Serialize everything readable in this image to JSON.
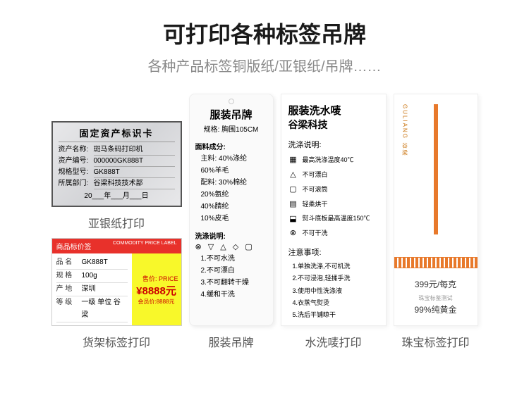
{
  "header": {
    "title": "可打印各种标签吊牌",
    "subtitle": "各种产品标签铜版纸/亚银纸/吊牌……"
  },
  "asset": {
    "card_title": "固定资产标识卡",
    "rows": [
      {
        "k": "资产名称:",
        "v": "斑马条码打印机"
      },
      {
        "k": "资产编号:",
        "v": "000000GK888T"
      },
      {
        "k": "规格型号:",
        "v": "GK888T"
      },
      {
        "k": "所属部门:",
        "v": "谷梁科技技术部"
      }
    ],
    "date": "20___年___月___日",
    "caption": "亚银纸打印"
  },
  "price": {
    "head_l": "商品标价签",
    "head_r": "COMMODITY PRICE LABEL",
    "rows": [
      {
        "k": "品 名",
        "v": "GK888T"
      },
      {
        "k": "规 格",
        "v": "100g"
      },
      {
        "k": "产 地",
        "v": "深圳"
      },
      {
        "k": "等 级",
        "v": "一级 单位 谷梁"
      }
    ],
    "sp": "售价: PRICE",
    "price_val": "¥8888元",
    "member": "会员价:8888元",
    "caption": "货架标签打印"
  },
  "hang": {
    "title": "服装吊牌",
    "spec": "规格: 胸围105CM",
    "sec1": "面料成分:",
    "comp": [
      "主料: 40%涤纶",
      "60%羊毛",
      "配料: 30%棉纶",
      "20%氨纶",
      "40%腈纶",
      "10%皮毛"
    ],
    "sec2": "洗涤说明:",
    "icons": "⊗ ▽ △ ◇ ▢",
    "notes": [
      "1.不可水洗",
      "2.不可漂白",
      "3.不可翻转干燥",
      "4.缓和干洗"
    ],
    "caption": "服装吊牌"
  },
  "wash": {
    "title": "服装洗水唛",
    "sub": "谷梁科技",
    "sec1": "洗涤说明:",
    "rows": [
      {
        "i": "▦",
        "t": "最高洗涤温度40℃"
      },
      {
        "i": "△",
        "t": "不可漂白"
      },
      {
        "i": "▢",
        "t": "不可滚筒"
      },
      {
        "i": "▤",
        "t": "轻柔烘干"
      },
      {
        "i": "⬓",
        "t": "熨斗底板最高温度150℃"
      },
      {
        "i": "⊗",
        "t": "不可干洗"
      }
    ],
    "sec2": "注意事项:",
    "notes": [
      "1.单独洗涤,不可机洗",
      "2.不可浸泡,轻揉手洗",
      "3.使用中性洗涤液",
      "4.衣蒸气熨烫",
      "5.洗后平铺晾干"
    ],
    "caption": "水洗唛打印"
  },
  "jewel": {
    "brand": "GULIANG 谷梁",
    "price": "399元/每克",
    "small": "珠宝标鉴测试",
    "gold": "99%纯黄金",
    "caption": "珠宝标签打印",
    "accent": "#e8792b"
  }
}
